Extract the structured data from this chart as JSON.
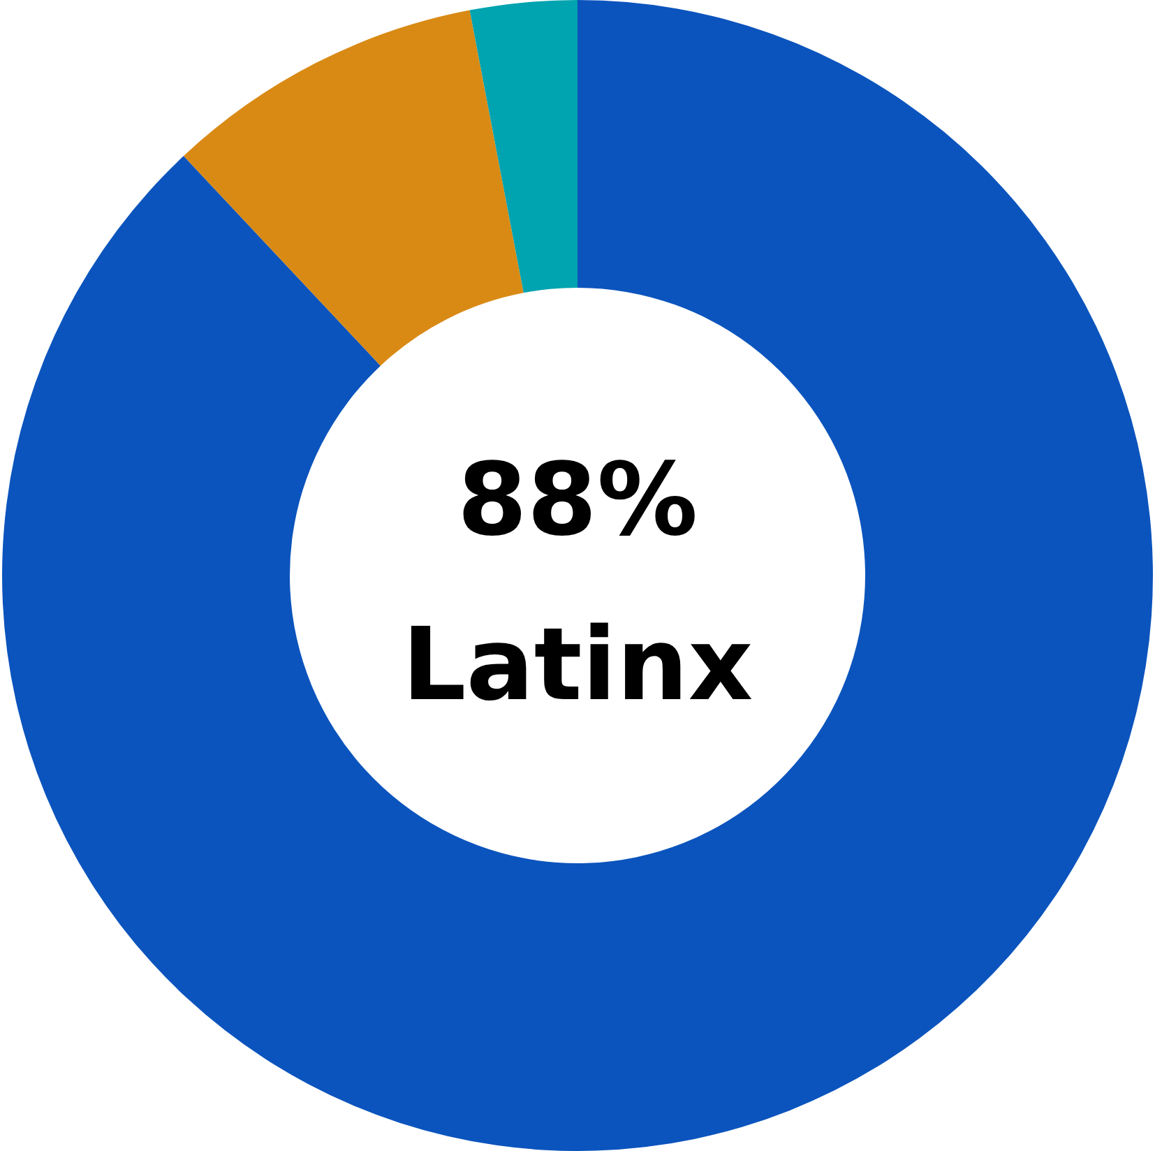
{
  "chart_data": {
    "type": "donut",
    "categories": [
      "Latinx",
      null,
      null
    ],
    "values": [
      88,
      9,
      3
    ],
    "value_labels": [
      "88%",
      null,
      null
    ],
    "colors": [
      "#0b54bd",
      "#d98a15",
      "#00a3b0"
    ],
    "legend": false
  }
}
